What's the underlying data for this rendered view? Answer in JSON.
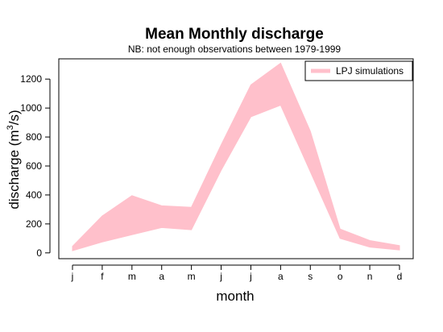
{
  "chart_data": {
    "type": "area",
    "title": "Mean Monthly discharge",
    "subtitle": "NB: not enough observations between 1979-1999",
    "xlabel": "month",
    "ylabel": "discharge (m",
    "ylabel_sup": "3",
    "ylabel_tail": "/s)",
    "categories": [
      "j",
      "f",
      "m",
      "a",
      "m",
      "j",
      "j",
      "a",
      "s",
      "o",
      "n",
      "d"
    ],
    "series": [
      {
        "name": "LPJ simulations",
        "type": "band",
        "color": "#FFC0CB",
        "upper": [
          45,
          255,
          395,
          325,
          315,
          745,
          1160,
          1310,
          840,
          165,
          85,
          50
        ],
        "lower": [
          15,
          75,
          125,
          175,
          160,
          570,
          940,
          1020,
          560,
          100,
          40,
          20
        ]
      }
    ],
    "yticks": [
      0,
      200,
      400,
      600,
      800,
      1000,
      1200
    ],
    "ylim": [
      -40,
      1340
    ],
    "grid": false,
    "legend_position": "top-right"
  }
}
